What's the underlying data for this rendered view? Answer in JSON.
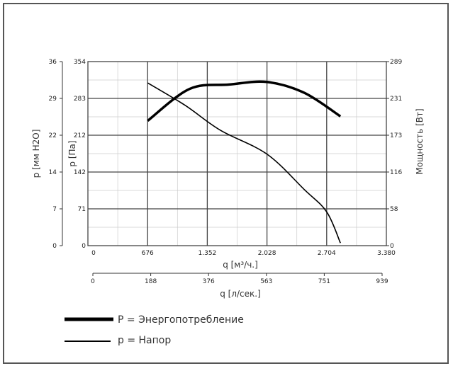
{
  "chart_data": {
    "type": "line",
    "x_axes": {
      "q_m3h": {
        "label": "q [м³/ч.]",
        "ticks": [
          "0",
          "676",
          "1.352",
          "2.028",
          "2.704",
          "3.380"
        ],
        "range": [
          0,
          3380
        ]
      },
      "q_ls": {
        "label": "q [л/сек.]",
        "ticks": [
          "0",
          "188",
          "376",
          "563",
          "751",
          "939"
        ]
      }
    },
    "y_axes": {
      "p_mmh2o": {
        "label": "p [мм H2O]",
        "ticks": [
          "0",
          "7",
          "14",
          "22",
          "29",
          "36"
        ]
      },
      "p_pa": {
        "label": "p [Па]",
        "ticks": [
          "0",
          "71",
          "142",
          "212",
          "283",
          "354"
        ],
        "range": [
          0,
          354
        ]
      },
      "power_w": {
        "label": "Мощность [Вт]",
        "ticks": [
          "0",
          "58",
          "116",
          "173",
          "231",
          "289"
        ],
        "range": [
          0,
          289
        ]
      }
    },
    "series": [
      {
        "name": "P = Энергопотребление",
        "axis": "power_w",
        "line": "thick",
        "points": [
          [
            676,
            196
          ],
          [
            1150,
            246
          ],
          [
            1600,
            253
          ],
          [
            2028,
            257
          ],
          [
            2450,
            240
          ],
          [
            2860,
            203
          ]
        ]
      },
      {
        "name": "p = Напор",
        "axis": "p_pa",
        "line": "thin",
        "points": [
          [
            676,
            313
          ],
          [
            1100,
            270
          ],
          [
            1500,
            222
          ],
          [
            2028,
            176
          ],
          [
            2450,
            108
          ],
          [
            2704,
            65
          ],
          [
            2860,
            5
          ]
        ]
      }
    ],
    "legend": {
      "position": "bottom-left",
      "entries": [
        "P = Энергопотребление",
        "p = Напор"
      ]
    },
    "grid": true
  }
}
